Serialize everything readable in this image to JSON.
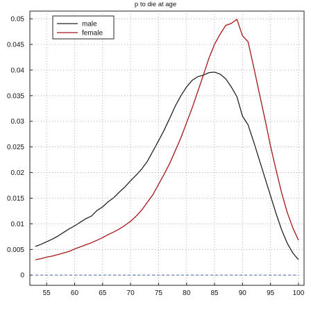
{
  "chart_data": {
    "type": "line",
    "title": "p to die at age",
    "xlabel": "",
    "ylabel": "",
    "xlim": [
      52,
      101
    ],
    "ylim": [
      -0.002,
      0.0515
    ],
    "x_ticks": [
      55,
      60,
      65,
      70,
      75,
      80,
      85,
      90,
      95,
      100
    ],
    "x_tick_labels": [
      "55",
      "60",
      "65",
      "70",
      "75",
      "80",
      "85",
      "90",
      "95",
      "100"
    ],
    "y_ticks": [
      0,
      0.005,
      0.01,
      0.015,
      0.02,
      0.025,
      0.03,
      0.035,
      0.04,
      0.045,
      0.05
    ],
    "y_tick_labels": [
      "0",
      "0.005",
      "0.01",
      "0.015",
      "0.02",
      "0.025",
      "0.03",
      "0.035",
      "0.04",
      "0.045",
      "0.05"
    ],
    "grid": true,
    "legend_position": "top-left",
    "x": [
      53,
      54,
      55,
      56,
      57,
      58,
      59,
      60,
      61,
      62,
      63,
      64,
      65,
      66,
      67,
      68,
      69,
      70,
      71,
      72,
      73,
      74,
      75,
      76,
      77,
      78,
      79,
      80,
      81,
      82,
      83,
      84,
      85,
      86,
      87,
      88,
      89,
      90,
      91,
      92,
      93,
      94,
      95,
      96,
      97,
      98,
      99,
      100
    ],
    "series": [
      {
        "name": "male",
        "color": "#222222",
        "values": [
          0.0056,
          0.006,
          0.0065,
          0.007,
          0.0076,
          0.0083,
          0.009,
          0.0096,
          0.0103,
          0.011,
          0.0115,
          0.0126,
          0.0133,
          0.0143,
          0.0151,
          0.0162,
          0.0172,
          0.0184,
          0.0195,
          0.0207,
          0.0222,
          0.0242,
          0.0262,
          0.0283,
          0.0306,
          0.033,
          0.035,
          0.0367,
          0.038,
          0.0387,
          0.039,
          0.0395,
          0.0396,
          0.0392,
          0.0383,
          0.0367,
          0.0348,
          0.031,
          0.0293,
          0.026,
          0.0225,
          0.019,
          0.0155,
          0.012,
          0.0088,
          0.0062,
          0.0043,
          0.003
        ]
      },
      {
        "name": "female",
        "color": "#a31515",
        "values": [
          0.003,
          0.0032,
          0.0035,
          0.0037,
          0.004,
          0.0043,
          0.0046,
          0.0051,
          0.0055,
          0.0059,
          0.0063,
          0.0068,
          0.0073,
          0.0079,
          0.0084,
          0.009,
          0.0097,
          0.0105,
          0.0115,
          0.0127,
          0.0142,
          0.0157,
          0.0177,
          0.0197,
          0.0218,
          0.0243,
          0.0268,
          0.0297,
          0.0326,
          0.0358,
          0.039,
          0.0423,
          0.045,
          0.047,
          0.0487,
          0.0491,
          0.0499,
          0.0467,
          0.0455,
          0.0406,
          0.0355,
          0.0305,
          0.0252,
          0.0205,
          0.016,
          0.0122,
          0.0092,
          0.0068
        ]
      }
    ],
    "zero_line": {
      "value": 0,
      "color": "#4466bb",
      "style": "dashed"
    }
  }
}
